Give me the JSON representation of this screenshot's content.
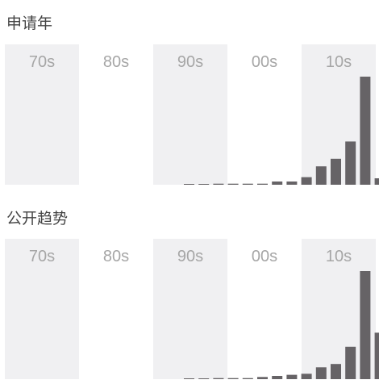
{
  "chart_data": [
    {
      "type": "bar",
      "title": "申请年",
      "decades": [
        "70s",
        "80s",
        "90s",
        "00s",
        "10s"
      ],
      "shaded_decades": [
        "70s",
        "90s",
        "10s"
      ],
      "x_start_year": 1997,
      "x_end_year": 2019,
      "values": [
        0,
        0,
        1,
        1,
        1,
        1,
        3,
        3,
        7,
        17,
        24,
        40,
        100,
        6
      ],
      "bar_color": "#666366",
      "shade_color": "#f0f0f2"
    },
    {
      "type": "bar",
      "title": "公开趋势",
      "decades": [
        "70s",
        "80s",
        "90s",
        "00s",
        "10s"
      ],
      "shaded_decades": [
        "70s",
        "90s",
        "10s"
      ],
      "x_start_year": 1997,
      "x_end_year": 2019,
      "values": [
        0,
        0,
        1,
        1,
        1,
        2,
        3,
        4,
        5,
        11,
        14,
        30,
        100,
        43
      ],
      "bar_color": "#666366",
      "shade_color": "#f0f0f2"
    }
  ]
}
